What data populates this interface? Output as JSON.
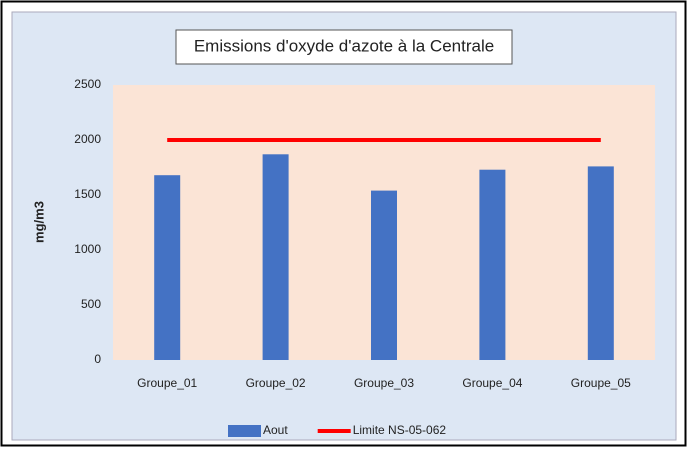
{
  "chart_data": {
    "type": "bar",
    "title": "Emissions d'oxyde d'azote à la Centrale",
    "y_label": "mg/m3",
    "categories": [
      "Groupe_01",
      "Groupe_02",
      "Groupe_03",
      "Groupe_04",
      "Groupe_05"
    ],
    "series": [
      {
        "name": "Aout",
        "type": "bar",
        "color": "#4472c4",
        "values": [
          1680,
          1870,
          1540,
          1730,
          1760
        ]
      },
      {
        "name": "Limite NS-05-062",
        "type": "line",
        "color": "#ff0000",
        "values": [
          2000,
          2000,
          2000,
          2000,
          2000
        ]
      }
    ],
    "ylim": [
      0,
      2500
    ],
    "yticks": [
      0,
      500,
      1000,
      1500,
      2000,
      2500
    ],
    "grid": false,
    "legend": "bottom"
  }
}
